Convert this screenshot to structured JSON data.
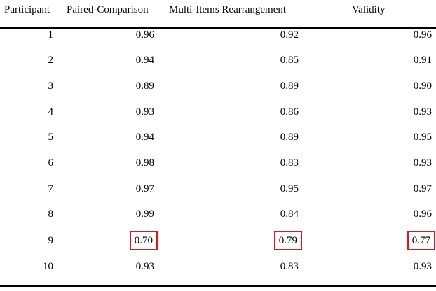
{
  "headers": [
    "Participant",
    "Paired-Comparison",
    "Multi-Items Rearrangement",
    "Validity"
  ],
  "rows": [
    {
      "participant": "1",
      "paired": "0.96",
      "multi": "0.92",
      "validity": "0.96",
      "highlight": false
    },
    {
      "participant": "2",
      "paired": "0.94",
      "multi": "0.85",
      "validity": "0.91",
      "highlight": false
    },
    {
      "participant": "3",
      "paired": "0.89",
      "multi": "0.89",
      "validity": "0.90",
      "highlight": false
    },
    {
      "participant": "4",
      "paired": "0.93",
      "multi": "0.86",
      "validity": "0.93",
      "highlight": false
    },
    {
      "participant": "5",
      "paired": "0.94",
      "multi": "0.89",
      "validity": "0.95",
      "highlight": false
    },
    {
      "participant": "6",
      "paired": "0.98",
      "multi": "0.83",
      "validity": "0.93",
      "highlight": false
    },
    {
      "participant": "7",
      "paired": "0.97",
      "multi": "0.95",
      "validity": "0.97",
      "highlight": false
    },
    {
      "participant": "8",
      "paired": "0.99",
      "multi": "0.84",
      "validity": "0.96",
      "highlight": false
    },
    {
      "participant": "9",
      "paired": "0.70",
      "multi": "0.79",
      "validity": "0.77",
      "highlight": true
    },
    {
      "participant": "10",
      "paired": "0.93",
      "multi": "0.83",
      "validity": "0.93",
      "highlight": false
    }
  ],
  "colors": {
    "text": "#000000",
    "rule": "#000000",
    "highlight_box": "#e4141b"
  }
}
